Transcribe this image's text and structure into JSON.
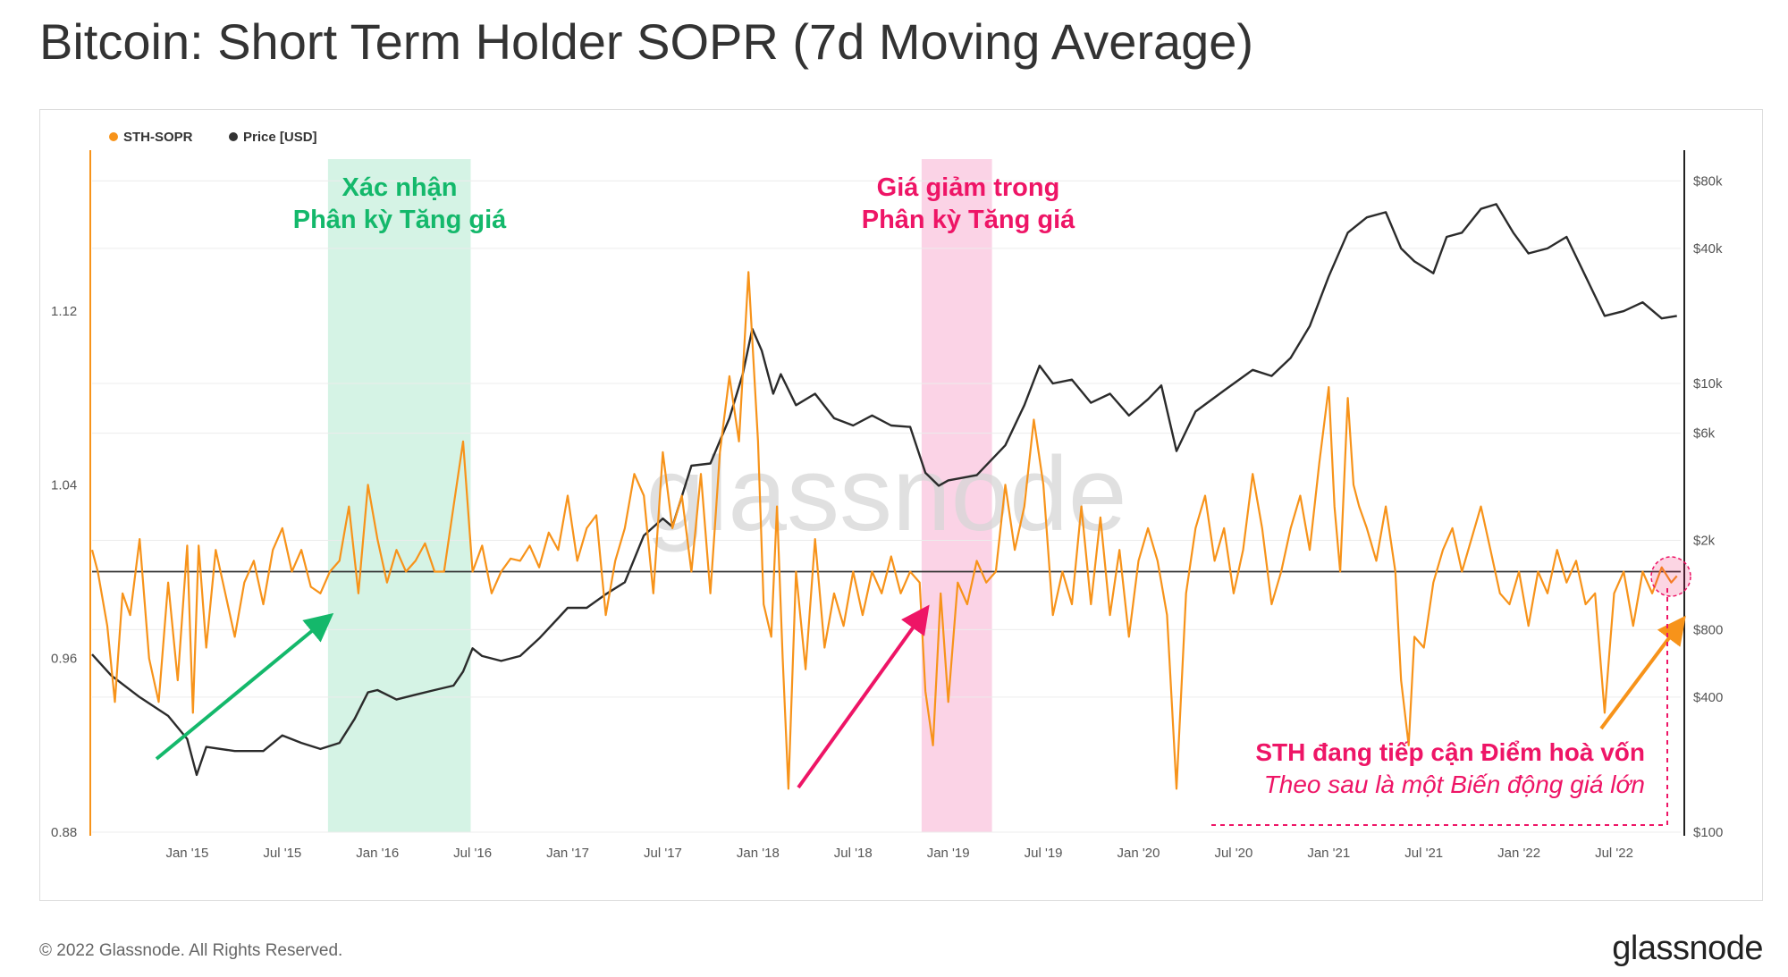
{
  "title": "Bitcoin: Short Term Holder SOPR (7d Moving Average)",
  "footer": {
    "copyright": "© 2022 Glassnode. All Rights Reserved.",
    "logo": "glassnode"
  },
  "chart_data": {
    "type": "line",
    "title": "Bitcoin: Short Term Holder SOPR (7d Moving Average)",
    "watermark": "glassnode",
    "legend": [
      {
        "name": "STH-SOPR",
        "color": "#f7931a"
      },
      {
        "name": "Price [USD]",
        "color": "#333333"
      }
    ],
    "colors": {
      "sopr": "#f7931a",
      "price": "#2b2b2b",
      "green": "#14b86b",
      "pink": "#ee1566",
      "green_fill": "#d5f3e5",
      "pink_fill": "#fbd3e6"
    },
    "x_ticks": [
      "Jan '15",
      "Jul '15",
      "Jan '16",
      "Jul '16",
      "Jan '17",
      "Jul '17",
      "Jan '18",
      "Jul '18",
      "Jan '19",
      "Jul '19",
      "Jan '20",
      "Jul '20",
      "Jan '21",
      "Jul '21",
      "Jan '22",
      "Jul '22"
    ],
    "x_range": [
      2014.5,
      2022.85
    ],
    "left_axis": {
      "ticks": [
        "1.12",
        "1.04",
        "0.96",
        "0.88"
      ],
      "values": [
        1.12,
        1.04,
        0.96,
        0.88
      ],
      "range": [
        0.88,
        1.19
      ]
    },
    "right_axis": {
      "ticks": [
        "$80k",
        "$40k",
        "$10k",
        "$6k",
        "$2k",
        "$800",
        "$400",
        "$100"
      ],
      "values": [
        80000,
        40000,
        10000,
        6000,
        2000,
        800,
        400,
        100
      ],
      "range": [
        100,
        100000
      ],
      "scale": "log"
    },
    "baseline": 1.0,
    "series": [
      {
        "name": "Price [USD]",
        "points": [
          [
            2014.5,
            620
          ],
          [
            2014.6,
            500
          ],
          [
            2014.75,
            400
          ],
          [
            2014.9,
            330
          ],
          [
            2015.0,
            260
          ],
          [
            2015.05,
            180
          ],
          [
            2015.1,
            240
          ],
          [
            2015.25,
            230
          ],
          [
            2015.4,
            230
          ],
          [
            2015.5,
            270
          ],
          [
            2015.6,
            250
          ],
          [
            2015.7,
            235
          ],
          [
            2015.8,
            250
          ],
          [
            2015.88,
            320
          ],
          [
            2015.95,
            420
          ],
          [
            2016.0,
            430
          ],
          [
            2016.1,
            390
          ],
          [
            2016.2,
            410
          ],
          [
            2016.3,
            430
          ],
          [
            2016.4,
            450
          ],
          [
            2016.45,
            520
          ],
          [
            2016.5,
            660
          ],
          [
            2016.55,
            610
          ],
          [
            2016.65,
            580
          ],
          [
            2016.75,
            610
          ],
          [
            2016.85,
            730
          ],
          [
            2016.95,
            900
          ],
          [
            2017.0,
            1000
          ],
          [
            2017.1,
            1000
          ],
          [
            2017.2,
            1150
          ],
          [
            2017.3,
            1300
          ],
          [
            2017.4,
            2100
          ],
          [
            2017.5,
            2500
          ],
          [
            2017.55,
            2300
          ],
          [
            2017.65,
            4300
          ],
          [
            2017.75,
            4400
          ],
          [
            2017.85,
            7000
          ],
          [
            2017.92,
            11000
          ],
          [
            2017.97,
            17500
          ],
          [
            2018.02,
            14000
          ],
          [
            2018.08,
            9000
          ],
          [
            2018.12,
            11000
          ],
          [
            2018.2,
            8000
          ],
          [
            2018.3,
            9000
          ],
          [
            2018.4,
            7000
          ],
          [
            2018.5,
            6500
          ],
          [
            2018.6,
            7200
          ],
          [
            2018.7,
            6500
          ],
          [
            2018.8,
            6400
          ],
          [
            2018.88,
            4000
          ],
          [
            2018.95,
            3500
          ],
          [
            2019.0,
            3700
          ],
          [
            2019.15,
            3900
          ],
          [
            2019.3,
            5300
          ],
          [
            2019.4,
            8000
          ],
          [
            2019.48,
            12000
          ],
          [
            2019.55,
            10000
          ],
          [
            2019.65,
            10400
          ],
          [
            2019.75,
            8200
          ],
          [
            2019.85,
            9000
          ],
          [
            2019.95,
            7200
          ],
          [
            2020.05,
            8500
          ],
          [
            2020.12,
            9800
          ],
          [
            2020.2,
            5000
          ],
          [
            2020.3,
            7500
          ],
          [
            2020.45,
            9300
          ],
          [
            2020.6,
            11500
          ],
          [
            2020.7,
            10800
          ],
          [
            2020.8,
            13000
          ],
          [
            2020.9,
            18000
          ],
          [
            2021.0,
            30000
          ],
          [
            2021.1,
            47000
          ],
          [
            2021.2,
            55000
          ],
          [
            2021.3,
            58000
          ],
          [
            2021.38,
            40000
          ],
          [
            2021.45,
            35000
          ],
          [
            2021.55,
            31000
          ],
          [
            2021.62,
            45000
          ],
          [
            2021.7,
            47000
          ],
          [
            2021.8,
            60000
          ],
          [
            2021.88,
            63000
          ],
          [
            2021.97,
            47000
          ],
          [
            2022.05,
            38000
          ],
          [
            2022.15,
            40000
          ],
          [
            2022.25,
            45000
          ],
          [
            2022.35,
            30000
          ],
          [
            2022.45,
            20000
          ],
          [
            2022.55,
            21000
          ],
          [
            2022.65,
            23000
          ],
          [
            2022.75,
            19500
          ],
          [
            2022.83,
            20000
          ]
        ]
      },
      {
        "name": "STH-SOPR",
        "points": [
          [
            2014.5,
            1.01
          ],
          [
            2014.53,
            1.0
          ],
          [
            2014.58,
            0.975
          ],
          [
            2014.62,
            0.94
          ],
          [
            2014.66,
            0.99
          ],
          [
            2014.7,
            0.98
          ],
          [
            2014.75,
            1.015
          ],
          [
            2014.8,
            0.96
          ],
          [
            2014.85,
            0.94
          ],
          [
            2014.9,
            0.995
          ],
          [
            2014.95,
            0.95
          ],
          [
            2015.0,
            1.012
          ],
          [
            2015.03,
            0.935
          ],
          [
            2015.06,
            1.012
          ],
          [
            2015.1,
            0.965
          ],
          [
            2015.15,
            1.01
          ],
          [
            2015.2,
            0.99
          ],
          [
            2015.25,
            0.97
          ],
          [
            2015.3,
            0.995
          ],
          [
            2015.35,
            1.005
          ],
          [
            2015.4,
            0.985
          ],
          [
            2015.45,
            1.01
          ],
          [
            2015.5,
            1.02
          ],
          [
            2015.55,
            1.0
          ],
          [
            2015.6,
            1.01
          ],
          [
            2015.65,
            0.993
          ],
          [
            2015.7,
            0.99
          ],
          [
            2015.75,
            1.0
          ],
          [
            2015.8,
            1.005
          ],
          [
            2015.85,
            1.03
          ],
          [
            2015.9,
            0.99
          ],
          [
            2015.95,
            1.04
          ],
          [
            2016.0,
            1.015
          ],
          [
            2016.05,
            0.995
          ],
          [
            2016.1,
            1.01
          ],
          [
            2016.15,
            1.0
          ],
          [
            2016.2,
            1.005
          ],
          [
            2016.25,
            1.013
          ],
          [
            2016.3,
            1.0
          ],
          [
            2016.35,
            1.0
          ],
          [
            2016.4,
            1.03
          ],
          [
            2016.45,
            1.06
          ],
          [
            2016.5,
            1.0
          ],
          [
            2016.55,
            1.012
          ],
          [
            2016.6,
            0.99
          ],
          [
            2016.65,
            1.0
          ],
          [
            2016.7,
            1.006
          ],
          [
            2016.75,
            1.005
          ],
          [
            2016.8,
            1.012
          ],
          [
            2016.85,
            1.002
          ],
          [
            2016.9,
            1.018
          ],
          [
            2016.95,
            1.01
          ],
          [
            2017.0,
            1.035
          ],
          [
            2017.05,
            1.005
          ],
          [
            2017.1,
            1.02
          ],
          [
            2017.15,
            1.026
          ],
          [
            2017.2,
            0.98
          ],
          [
            2017.25,
            1.005
          ],
          [
            2017.3,
            1.02
          ],
          [
            2017.35,
            1.045
          ],
          [
            2017.4,
            1.035
          ],
          [
            2017.45,
            0.99
          ],
          [
            2017.5,
            1.055
          ],
          [
            2017.55,
            1.02
          ],
          [
            2017.6,
            1.035
          ],
          [
            2017.65,
            1.0
          ],
          [
            2017.7,
            1.045
          ],
          [
            2017.75,
            0.99
          ],
          [
            2017.8,
            1.055
          ],
          [
            2017.85,
            1.09
          ],
          [
            2017.9,
            1.06
          ],
          [
            2017.95,
            1.138
          ],
          [
            2018.0,
            1.06
          ],
          [
            2018.03,
            0.985
          ],
          [
            2018.07,
            0.97
          ],
          [
            2018.1,
            1.03
          ],
          [
            2018.13,
            0.96
          ],
          [
            2018.16,
            0.9
          ],
          [
            2018.2,
            1.0
          ],
          [
            2018.25,
            0.955
          ],
          [
            2018.3,
            1.015
          ],
          [
            2018.35,
            0.965
          ],
          [
            2018.4,
            0.99
          ],
          [
            2018.45,
            0.975
          ],
          [
            2018.5,
            1.0
          ],
          [
            2018.55,
            0.98
          ],
          [
            2018.6,
            1.0
          ],
          [
            2018.65,
            0.99
          ],
          [
            2018.7,
            1.007
          ],
          [
            2018.75,
            0.99
          ],
          [
            2018.8,
            1.0
          ],
          [
            2018.85,
            0.995
          ],
          [
            2018.88,
            0.945
          ],
          [
            2018.92,
            0.92
          ],
          [
            2018.96,
            0.99
          ],
          [
            2019.0,
            0.94
          ],
          [
            2019.05,
            0.995
          ],
          [
            2019.1,
            0.985
          ],
          [
            2019.15,
            1.005
          ],
          [
            2019.2,
            0.995
          ],
          [
            2019.25,
            1.0
          ],
          [
            2019.3,
            1.04
          ],
          [
            2019.35,
            1.01
          ],
          [
            2019.4,
            1.03
          ],
          [
            2019.45,
            1.07
          ],
          [
            2019.5,
            1.04
          ],
          [
            2019.55,
            0.98
          ],
          [
            2019.6,
            1.0
          ],
          [
            2019.65,
            0.985
          ],
          [
            2019.7,
            1.03
          ],
          [
            2019.75,
            0.985
          ],
          [
            2019.8,
            1.025
          ],
          [
            2019.85,
            0.98
          ],
          [
            2019.9,
            1.01
          ],
          [
            2019.95,
            0.97
          ],
          [
            2020.0,
            1.005
          ],
          [
            2020.05,
            1.02
          ],
          [
            2020.1,
            1.005
          ],
          [
            2020.15,
            0.98
          ],
          [
            2020.2,
            0.9
          ],
          [
            2020.25,
            0.99
          ],
          [
            2020.3,
            1.02
          ],
          [
            2020.35,
            1.035
          ],
          [
            2020.4,
            1.005
          ],
          [
            2020.45,
            1.02
          ],
          [
            2020.5,
            0.99
          ],
          [
            2020.55,
            1.01
          ],
          [
            2020.6,
            1.045
          ],
          [
            2020.65,
            1.02
          ],
          [
            2020.7,
            0.985
          ],
          [
            2020.75,
            1.0
          ],
          [
            2020.8,
            1.02
          ],
          [
            2020.85,
            1.035
          ],
          [
            2020.9,
            1.01
          ],
          [
            2020.95,
            1.05
          ],
          [
            2021.0,
            1.085
          ],
          [
            2021.03,
            1.03
          ],
          [
            2021.06,
            1.0
          ],
          [
            2021.1,
            1.08
          ],
          [
            2021.13,
            1.04
          ],
          [
            2021.16,
            1.03
          ],
          [
            2021.2,
            1.02
          ],
          [
            2021.25,
            1.005
          ],
          [
            2021.3,
            1.03
          ],
          [
            2021.35,
            1.0
          ],
          [
            2021.38,
            0.95
          ],
          [
            2021.42,
            0.92
          ],
          [
            2021.45,
            0.97
          ],
          [
            2021.5,
            0.965
          ],
          [
            2021.55,
            0.995
          ],
          [
            2021.6,
            1.01
          ],
          [
            2021.65,
            1.02
          ],
          [
            2021.7,
            1.0
          ],
          [
            2021.75,
            1.015
          ],
          [
            2021.8,
            1.03
          ],
          [
            2021.85,
            1.01
          ],
          [
            2021.9,
            0.99
          ],
          [
            2021.95,
            0.985
          ],
          [
            2022.0,
            1.0
          ],
          [
            2022.05,
            0.975
          ],
          [
            2022.1,
            1.0
          ],
          [
            2022.15,
            0.99
          ],
          [
            2022.2,
            1.01
          ],
          [
            2022.25,
            0.995
          ],
          [
            2022.3,
            1.005
          ],
          [
            2022.35,
            0.985
          ],
          [
            2022.4,
            0.99
          ],
          [
            2022.45,
            0.935
          ],
          [
            2022.5,
            0.99
          ],
          [
            2022.55,
            1.0
          ],
          [
            2022.6,
            0.975
          ],
          [
            2022.65,
            1.0
          ],
          [
            2022.7,
            0.99
          ],
          [
            2022.75,
            1.002
          ],
          [
            2022.8,
            0.995
          ],
          [
            2022.83,
            0.998
          ]
        ]
      }
    ],
    "regions": [
      {
        "x0": 2015.74,
        "x1": 2016.49,
        "color": "#d5f3e5"
      },
      {
        "x0": 2018.86,
        "x1": 2019.23,
        "color": "#fbd3e6"
      }
    ],
    "annotations": {
      "green": [
        "Xác nhận",
        "Phân kỳ Tăng giá"
      ],
      "pink": [
        "Giá giảm trong",
        "Phân kỳ Tăng giá"
      ],
      "note_bold": "STH đang tiếp cận Điểm hoà vốn",
      "note_italic": "Theo sau là một Biến động giá lớn"
    }
  }
}
